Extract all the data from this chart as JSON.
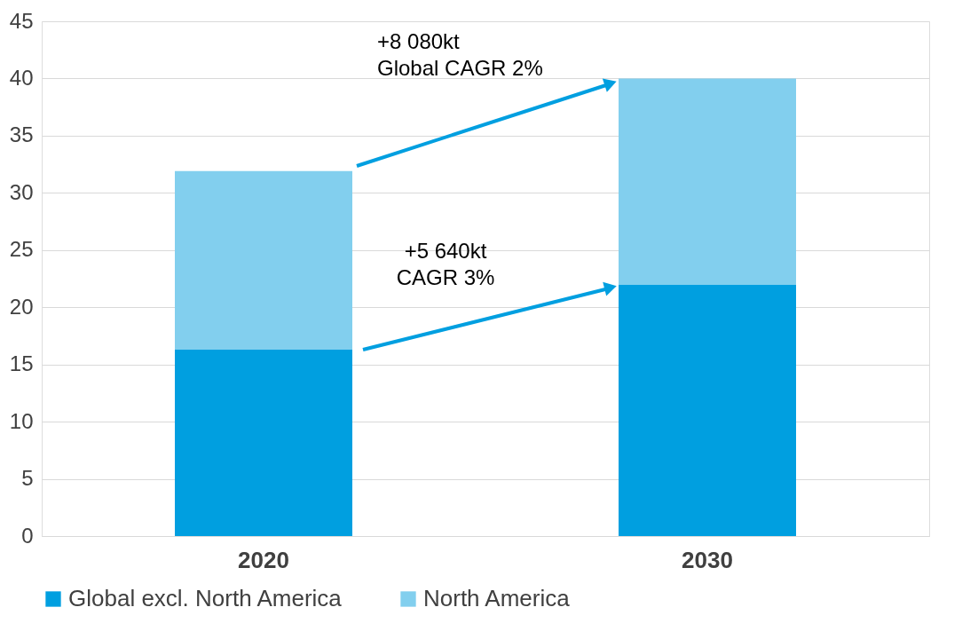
{
  "chart_data": {
    "type": "bar",
    "stacked": true,
    "categories": [
      "2020",
      "2030"
    ],
    "series": [
      {
        "name": "Global excl. North America",
        "color": "#009fe0",
        "values": [
          16.3,
          22.0
        ]
      },
      {
        "name": "North America",
        "color": "#82cfee",
        "values": [
          15.6,
          18.0
        ]
      }
    ],
    "ylim": [
      0,
      45
    ],
    "yticks": [
      0,
      5,
      10,
      15,
      20,
      25,
      30,
      35,
      40,
      45
    ],
    "grid": "y",
    "legend": "bottom",
    "annotations": [
      "+8 080kt\nGlobal CAGR 2%",
      "+5 640kt\nCAGR 3%"
    ]
  }
}
